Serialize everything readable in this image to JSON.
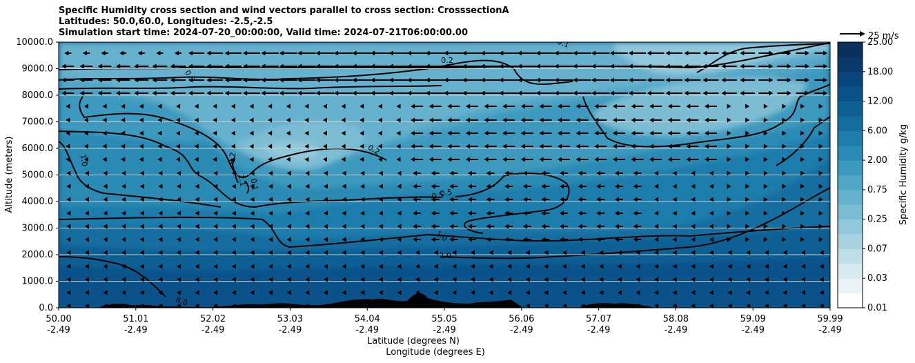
{
  "chart_data": {
    "type": "heatmap",
    "title_lines": [
      "Specific Humidity cross section and wind vectors parallel to cross section: CrosssectionA",
      "Latitudes: 50.0,60.0, Longitudes: -2.5,-2.5",
      "Simulation start time: 2024-07-20_00:00:00, Valid time: 2024-07-21T06:00:00.00"
    ],
    "ylabel": "Altitude (meters)",
    "xlabel_lat": "Latitude (degrees N)",
    "xlabel_lon": "Longitude (degrees E)",
    "ylim": [
      0,
      10000
    ],
    "y_ticks": [
      "0.0",
      "1000.0",
      "2000.0",
      "3000.0",
      "4000.0",
      "5000.0",
      "6000.0",
      "7000.0",
      "8000.0",
      "9000.0",
      "10000.0"
    ],
    "x_ticks": [
      {
        "lat": "50.00",
        "lon": "-2.49"
      },
      {
        "lat": "51.01",
        "lon": "-2.49"
      },
      {
        "lat": "52.02",
        "lon": "-2.49"
      },
      {
        "lat": "53.03",
        "lon": "-2.49"
      },
      {
        "lat": "54.04",
        "lon": "-2.49"
      },
      {
        "lat": "55.05",
        "lon": "-2.49"
      },
      {
        "lat": "56.06",
        "lon": "-2.49"
      },
      {
        "lat": "57.07",
        "lon": "-2.49"
      },
      {
        "lat": "58.08",
        "lon": "-2.49"
      },
      {
        "lat": "59.09",
        "lon": "-2.49"
      },
      {
        "lat": "59.99",
        "lon": "-2.49"
      }
    ],
    "grid": "horizontal",
    "colorbar": {
      "label": "Specific Humidity g/kg",
      "levels": [
        "0.01",
        "0.02",
        "0.03",
        "0.05",
        "0.07",
        "0.1",
        "0.25",
        "0.5",
        "0.75",
        "1.0",
        "2.00",
        "4.00",
        "6.00",
        "9.00",
        "12.00",
        "15.00",
        "18.00",
        "21.00",
        "25.00"
      ],
      "tick_labels": [
        "0.01",
        "0.03",
        "0.07",
        "0.25",
        "0.75",
        "2.00",
        "6.00",
        "12.00",
        "18.00",
        "25.00"
      ],
      "colors": [
        "#ffffff",
        "#e8f3f6",
        "#d6eaf0",
        "#c0dfe9",
        "#a9d3e2",
        "#92c8db",
        "#7cbdd4",
        "#66b1cd",
        "#51a6c6",
        "#3c9abe",
        "#2b8ab3",
        "#1f7bab",
        "#156d9f",
        "#0e5f94",
        "#0b528a",
        "#08457b",
        "#0a3a6c",
        "#0a2f5d",
        "#08204c"
      ]
    },
    "quiver_key": {
      "label": "25 m/s",
      "speed": 25
    },
    "contour_labels": [
      "0.1",
      "0.2",
      "0.5",
      "1.0",
      "0.2",
      "0.2",
      "0.5",
      "0.5",
      "1.0",
      "2.0",
      "8.0",
      "0.1",
      "1.1"
    ]
  }
}
